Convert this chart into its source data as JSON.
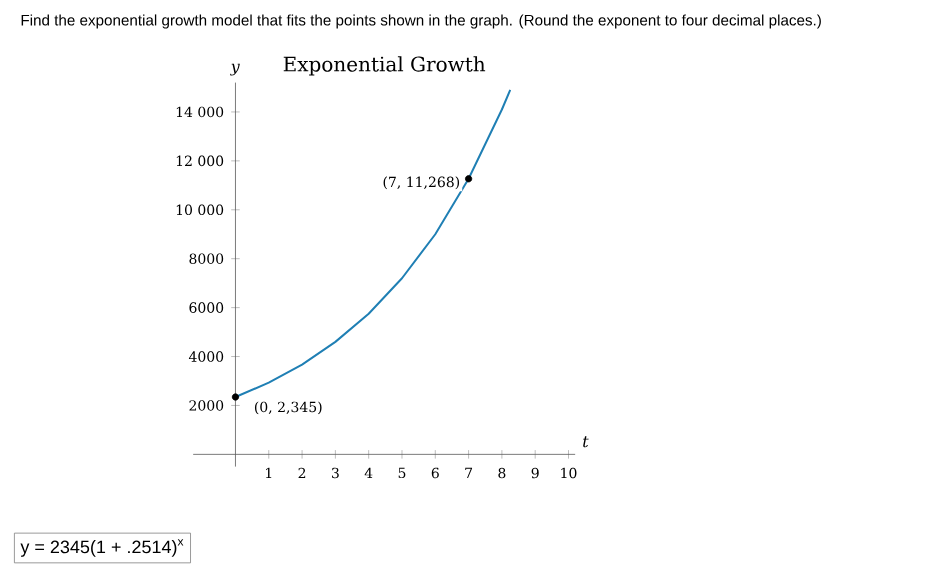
{
  "chart_data": {
    "type": "line",
    "title": "Exponential Growth",
    "xlabel": "t",
    "ylabel": "y",
    "x": [
      0,
      1,
      2,
      3,
      4,
      5,
      6,
      7,
      8,
      8.25
    ],
    "series": [
      {
        "color": "#1f7fb4",
        "marker": "none",
        "values": [
          2345,
          2930,
          3670,
          4600,
          5750,
          7200,
          9000,
          11268,
          14100,
          14900
        ]
      },
      {
        "type": "scatter",
        "color": "#000000",
        "marker": "circle",
        "x": [
          0,
          7
        ],
        "values": [
          2345,
          11268
        ]
      }
    ],
    "xlim": [
      -1.27,
      10.2
    ],
    "ylim": [
      -500,
      15200
    ],
    "xticks": [
      1,
      2,
      3,
      4,
      5,
      6,
      7,
      8,
      9,
      10
    ],
    "yticks": [
      {
        "value": 2000,
        "label": "2000"
      },
      {
        "value": 4000,
        "label": "4000"
      },
      {
        "value": 6000,
        "label": "6000"
      },
      {
        "value": 8000,
        "label": "8000"
      },
      {
        "value": 10000,
        "label": "10 000"
      },
      {
        "value": 12000,
        "label": "12 000"
      },
      {
        "value": 14000,
        "label": "14 000"
      }
    ],
    "grid": false,
    "annotations": [
      "Find the exponential growth model that fits the points shown in the graph. (Round the exponent to four decimal places.)",
      {
        "text": "(7, 11,268)",
        "x": 7,
        "y": 11268
      },
      {
        "text": "(0, 2,345)",
        "x": 0,
        "y": 2345
      },
      "y = 2345(1 + .2514)$^{x}$"
    ]
  }
}
